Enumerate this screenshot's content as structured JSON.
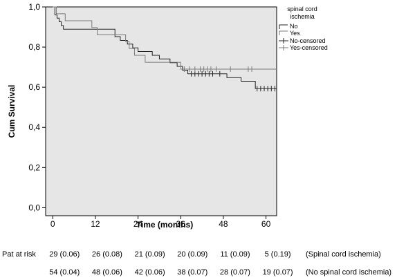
{
  "chart_data": {
    "type": "line",
    "subtype": "kaplan-meier",
    "xlabel": "Time (months)",
    "ylabel": "Cum Survival",
    "xlim": [
      -2,
      63
    ],
    "ylim": [
      -0.04,
      1.0
    ],
    "x_ticks": [
      0,
      12,
      24,
      36,
      48,
      60
    ],
    "x_tick_labels": [
      "0",
      "12",
      "24",
      "36",
      "48",
      "60"
    ],
    "y_ticks": [
      0.0,
      0.2,
      0.4,
      0.6,
      0.8,
      1.0
    ],
    "y_tick_labels": [
      "0,0",
      "0,2",
      "0,4",
      "0,6",
      "0,8",
      "1,0"
    ],
    "grid": false,
    "plot_background": "#e6e6e6",
    "legend": {
      "title": [
        "spinal cord",
        "ischemia"
      ],
      "placement": "right",
      "entries": [
        "No",
        "Yes",
        "No-censored",
        "Yes-censored"
      ]
    },
    "series": [
      {
        "name": "No",
        "color": "#222222",
        "steps": [
          [
            0,
            1.0
          ],
          [
            0.6,
            0.96
          ],
          [
            1.2,
            0.944
          ],
          [
            1.8,
            0.926
          ],
          [
            2.4,
            0.907
          ],
          [
            3,
            0.889
          ],
          [
            17.5,
            0.852
          ],
          [
            19,
            0.833
          ],
          [
            21,
            0.815
          ],
          [
            22.5,
            0.796
          ],
          [
            24,
            0.778
          ],
          [
            28,
            0.759
          ],
          [
            30,
            0.741
          ],
          [
            33,
            0.722
          ],
          [
            35,
            0.704
          ],
          [
            36.5,
            0.685
          ],
          [
            38,
            0.667
          ],
          [
            49,
            0.648
          ],
          [
            53,
            0.63
          ],
          [
            57,
            0.593
          ],
          [
            63,
            0.593
          ]
        ],
        "censored": [
          39,
          40,
          41,
          42,
          43,
          44,
          45,
          47,
          57.5,
          58.5,
          59.5,
          60.5,
          61.5,
          62.5
        ]
      },
      {
        "name": "Yes",
        "color": "#7a7a7a",
        "steps": [
          [
            0,
            1.0
          ],
          [
            1,
            0.966
          ],
          [
            3.5,
            0.931
          ],
          [
            11,
            0.897
          ],
          [
            12.5,
            0.862
          ],
          [
            20.5,
            0.828
          ],
          [
            21.5,
            0.793
          ],
          [
            23,
            0.759
          ],
          [
            26,
            0.724
          ],
          [
            36,
            0.69
          ],
          [
            63,
            0.69
          ]
        ],
        "censored": [
          37,
          38.5,
          40,
          41.5,
          42.5,
          43.5,
          44.5,
          46,
          50,
          55,
          56
        ]
      }
    ]
  },
  "risk_table": {
    "label": "Pat at risk",
    "rows": [
      {
        "values": [
          "29 (0.06)",
          "26 (0.08)",
          "21 (0.09)",
          "20 (0.09)",
          "11 (0.09)",
          "5 (0.19)"
        ],
        "group": "(Spinal cord ischemia)"
      },
      {
        "values": [
          "54 (0.04)",
          "48 (0.06)",
          "42 (0.06)",
          "38 (0.07)",
          "28 (0.07)",
          "19 (0.07)"
        ],
        "group": "(No spinal cord ischemia)"
      }
    ]
  }
}
